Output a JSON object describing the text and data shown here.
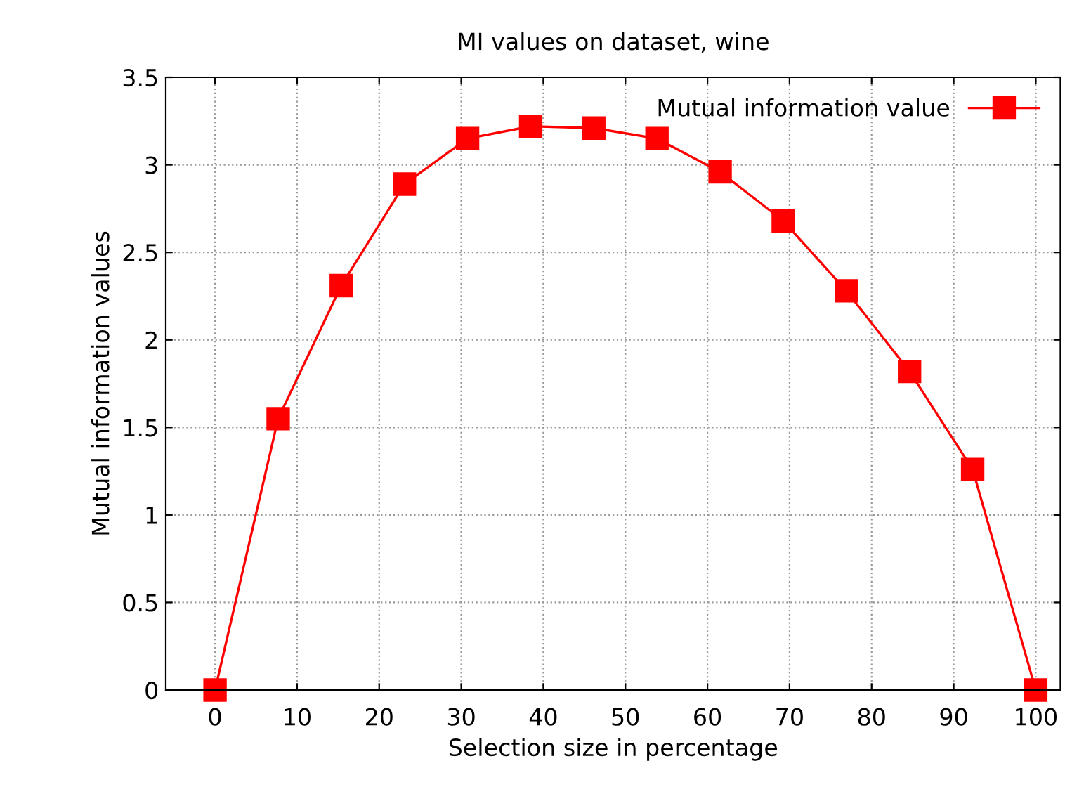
{
  "chart_data": {
    "type": "line",
    "title": "MI values on dataset, wine",
    "xlabel": "Selection size in percentage",
    "ylabel": "Mutual information values",
    "x": [
      0,
      7.69,
      15.38,
      23.08,
      30.77,
      38.46,
      46.15,
      53.85,
      61.54,
      69.23,
      76.92,
      84.62,
      92.31,
      100
    ],
    "series": [
      {
        "name": "Mutual information value",
        "color": "#ff0000",
        "values": [
          0,
          1.55,
          2.31,
          2.89,
          3.15,
          3.22,
          3.21,
          3.15,
          2.96,
          2.68,
          2.28,
          1.82,
          1.26,
          0
        ]
      }
    ],
    "xlim": [
      -6,
      103
    ],
    "ylim": [
      0,
      3.5
    ],
    "xticks": [
      0,
      10,
      20,
      30,
      40,
      50,
      60,
      70,
      80,
      90,
      100
    ],
    "yticks": [
      0,
      0.5,
      1,
      1.5,
      2,
      2.5,
      3,
      3.5
    ],
    "grid": true,
    "legend": "top right",
    "marker": "square",
    "line_style": "solid"
  }
}
